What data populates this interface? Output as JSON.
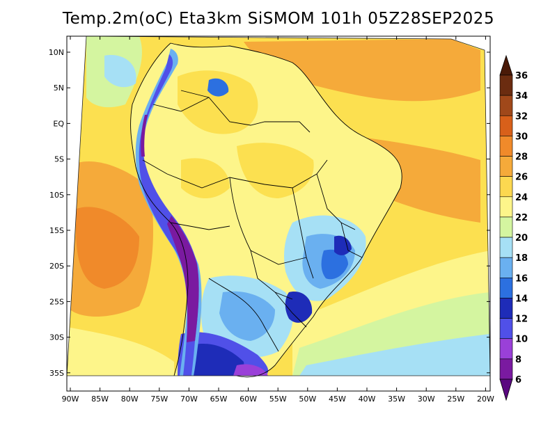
{
  "title": "Temp.2m(oC) Eta3km SiSMOM 101h 05Z28SEP2025",
  "map": {
    "lat_ticks": [
      "10N",
      "5N",
      "EQ",
      "5S",
      "10S",
      "15S",
      "20S",
      "25S",
      "30S",
      "35S"
    ],
    "lon_ticks": [
      "90W",
      "85W",
      "80W",
      "75W",
      "70W",
      "65W",
      "60W",
      "55W",
      "50W",
      "45W",
      "40W",
      "35W",
      "30W",
      "25W",
      "20W"
    ],
    "extent": {
      "lon_min": -90,
      "lon_max": -20,
      "lat_min": -37,
      "lat_max": 11
    },
    "variable": "2 m air temperature (°C)"
  },
  "colorbar": {
    "labels": [
      "36",
      "34",
      "32",
      "30",
      "28",
      "26",
      "24",
      "22",
      "20",
      "18",
      "16",
      "14",
      "12",
      "10",
      "8",
      "6"
    ],
    "colors": [
      "#6b2c10",
      "#a0481a",
      "#d8601a",
      "#f08a2a",
      "#f5aa3a",
      "#fcd850",
      "#fdf58a",
      "#d4f5a0",
      "#a6e0f5",
      "#6ab0f0",
      "#2c70e0",
      "#1e2cb8",
      "#5050e8",
      "#9a40d8",
      "#7a1aa0"
    ],
    "arrow_top_color": "#4a1a08",
    "arrow_bottom_color": "#5a0880"
  }
}
